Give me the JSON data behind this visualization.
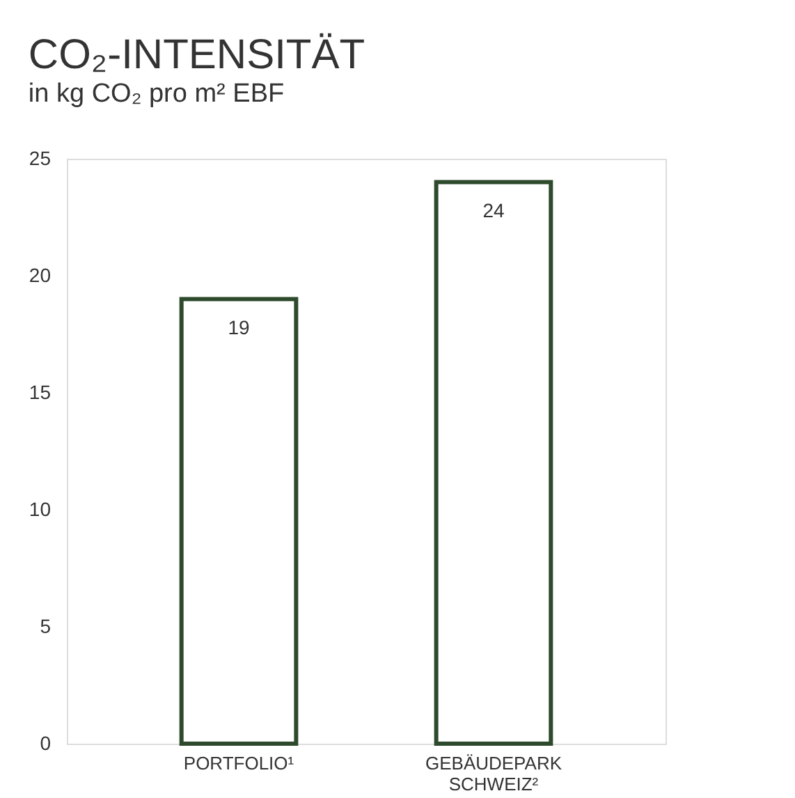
{
  "chart_data": {
    "type": "bar",
    "title": "CO₂-INTENSITÄT",
    "subtitle": "in kg CO₂ pro m² EBF",
    "categories": [
      "PORTFOLIO¹",
      "GEBÄUDEPARK SCHWEIZ²"
    ],
    "values": [
      19,
      24
    ],
    "color": "#2e4a2c",
    "ylim": [
      0,
      25
    ],
    "yticks": [
      0,
      5,
      10,
      15,
      20,
      25
    ],
    "grid": false,
    "data_labels": true
  }
}
